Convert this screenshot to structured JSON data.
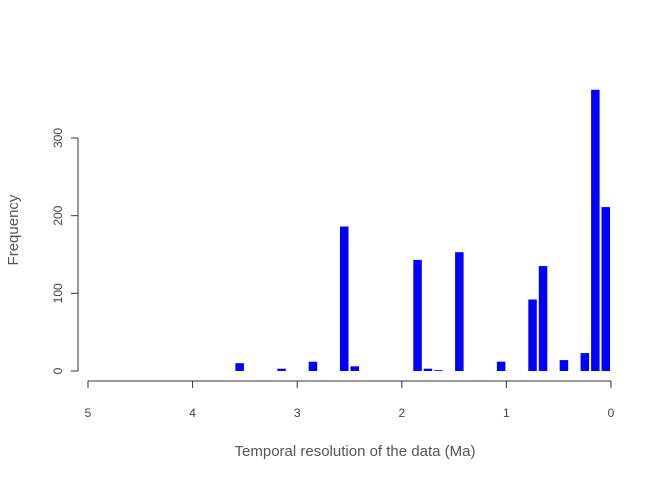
{
  "chart_data": {
    "type": "bar",
    "title": "",
    "xlabel": "Temporal resolution of the data (Ma)",
    "ylabel": "Frequency",
    "xlim": [
      5,
      0
    ],
    "ylim": [
      0,
      370
    ],
    "x_ticks": [
      "5",
      "4",
      "3",
      "2",
      "1",
      "0"
    ],
    "y_ticks": [
      "0",
      "100",
      "200",
      "300"
    ],
    "bar_color": "#0000ff",
    "grid": false,
    "bar_width": 0.1,
    "x": [
      3.55,
      3.15,
      2.85,
      2.55,
      2.45,
      1.85,
      1.75,
      1.65,
      1.45,
      1.05,
      0.75,
      0.65,
      0.45,
      0.25,
      0.15,
      0.05
    ],
    "values": [
      10,
      3,
      12,
      186,
      6,
      143,
      3,
      1,
      153,
      12,
      92,
      135,
      14,
      23,
      362,
      211
    ]
  }
}
